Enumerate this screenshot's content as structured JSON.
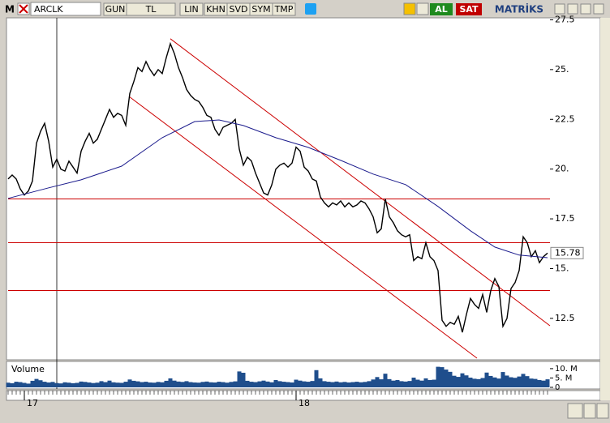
{
  "toolbar": {
    "logo": "M",
    "symbol": "ARCLK",
    "buttons": [
      "GUN",
      "TL",
      "LIN",
      "KHN",
      "SVD",
      "SYM",
      "TMP"
    ],
    "buy": "AL",
    "sell": "SAT",
    "brand": "MATRİKS"
  },
  "chart_data": {
    "type": "stock",
    "ylim": [
      10.5,
      27.6
    ],
    "yticks": [
      12.5,
      {
        "value": 15,
        "label": "15."
      },
      17.5,
      {
        "value": 20,
        "label": "20."
      },
      22.5,
      {
        "value": 25,
        "label": "25."
      },
      27.5
    ],
    "xlim": [
      0,
      133.6
    ],
    "xticks": [
      {
        "value": 4,
        "label": "17"
      },
      {
        "value": 71,
        "label": "18"
      }
    ],
    "series": [
      {
        "color": "#000000",
        "values": [
          19.5,
          19.7,
          19.5,
          19.0,
          18.7,
          18.9,
          19.4,
          21.3,
          21.9,
          22.3,
          21.4,
          20.1,
          20.5,
          20.0,
          19.9,
          20.4,
          20.1,
          19.8,
          20.9,
          21.4,
          21.8,
          21.3,
          21.5,
          22.0,
          22.5,
          23.0,
          22.6,
          22.8,
          22.7,
          22.2,
          23.8,
          24.4,
          25.1,
          24.9,
          25.4,
          25.0,
          24.7,
          25.0,
          24.8,
          25.6,
          26.3,
          25.8,
          25.1,
          24.6,
          24.0,
          23.7,
          23.5,
          23.4,
          23.1,
          22.7,
          22.6,
          22.0,
          21.7,
          22.1,
          22.2,
          22.3,
          22.5,
          21.0,
          20.2,
          20.6,
          20.4,
          19.8,
          19.3,
          18.8,
          18.7,
          19.2,
          20.0,
          20.2,
          20.3,
          20.1,
          20.3,
          21.1,
          20.9,
          20.1,
          19.9,
          19.5,
          19.4,
          18.6,
          18.3,
          18.1,
          18.3,
          18.2,
          18.4,
          18.1,
          18.3,
          18.1,
          18.2,
          18.4,
          18.3,
          18.0,
          17.6,
          16.8,
          17.0,
          18.5,
          17.6,
          17.3,
          16.9,
          16.7,
          16.6,
          16.7,
          15.4,
          15.6,
          15.5,
          16.3,
          15.6,
          15.4,
          14.9,
          12.4,
          12.1,
          12.3,
          12.2,
          12.6,
          11.8,
          12.7,
          13.5,
          13.2,
          13.0,
          13.7,
          12.8,
          13.9,
          14.5,
          14.1,
          12.1,
          12.5,
          14.0,
          14.3,
          14.9,
          16.6,
          16.3,
          15.6,
          15.9,
          15.3,
          15.6,
          15.78
        ]
      },
      {
        "color": "#1a1a8c",
        "x": [
          0,
          10,
          18,
          28,
          38,
          46,
          52,
          58,
          66,
          74,
          82,
          90,
          98,
          106,
          114,
          120,
          126,
          133
        ],
        "values": [
          18.53,
          19.06,
          19.46,
          20.15,
          21.58,
          22.39,
          22.47,
          22.19,
          21.58,
          21.09,
          20.44,
          19.75,
          19.22,
          18.12,
          16.9,
          16.08,
          15.68,
          15.55
        ]
      }
    ],
    "hlines": {
      "color": "#cc0000",
      "values": [
        18.5,
        16.3,
        13.9
      ]
    },
    "trendlines": {
      "color": "#cc0000",
      "lines": [
        {
          "x": [
            40,
            133.6
          ],
          "values": [
            26.55,
            12.13
          ]
        },
        {
          "x": [
            30,
            115.6
          ],
          "values": [
            23.62,
            10.5
          ]
        }
      ]
    },
    "volume": {
      "title": "Volume",
      "color": "#1f4e8c",
      "ylim": [
        0,
        13000000
      ],
      "yticks": [
        0,
        {
          "value": 5000000,
          "label": "5. M"
        },
        {
          "value": 10000000,
          "label": "10. M"
        }
      ],
      "values": [
        2500000,
        2200000,
        3000000,
        2800000,
        2400000,
        2000000,
        3500000,
        4500000,
        3800000,
        3000000,
        2600000,
        2900000,
        2300000,
        2100000,
        2700000,
        2500000,
        2200000,
        2400000,
        3100000,
        2900000,
        2600000,
        2300000,
        2500000,
        3300000,
        2800000,
        3600000,
        2700000,
        2500000,
        2400000,
        3000000,
        4200000,
        3500000,
        3200000,
        2800000,
        3000000,
        2600000,
        2500000,
        2900000,
        2700000,
        3500000,
        4800000,
        3600000,
        3100000,
        2900000,
        3300000,
        2800000,
        2600000,
        2500000,
        2900000,
        3100000,
        2700000,
        2600000,
        3000000,
        2800000,
        2500000,
        2900000,
        3200000,
        8500000,
        7800000,
        3500000,
        3000000,
        2800000,
        3200000,
        3600000,
        3100000,
        2700000,
        3900000,
        3300000,
        3000000,
        2800000,
        2600000,
        4100000,
        3600000,
        3200000,
        3000000,
        3400000,
        9200000,
        4800000,
        3300000,
        3000000,
        2800000,
        3100000,
        2700000,
        2900000,
        2600000,
        2800000,
        3000000,
        2700000,
        2900000,
        3300000,
        4200000,
        5500000,
        4300000,
        7300000,
        4400000,
        3600000,
        3900000,
        3300000,
        3100000,
        3400000,
        5200000,
        4100000,
        3600000,
        4800000,
        3900000,
        4100000,
        11000000,
        10800000,
        9500000,
        8300000,
        6200000,
        5600000,
        7500000,
        6400000,
        5200000,
        4600000,
        4400000,
        5000000,
        7900000,
        6100000,
        5300000,
        4700000,
        8200000,
        6300000,
        5400000,
        5100000,
        5800000,
        7200000,
        6000000,
        4700000,
        4500000,
        3900000,
        3600000,
        4300000
      ]
    }
  }
}
